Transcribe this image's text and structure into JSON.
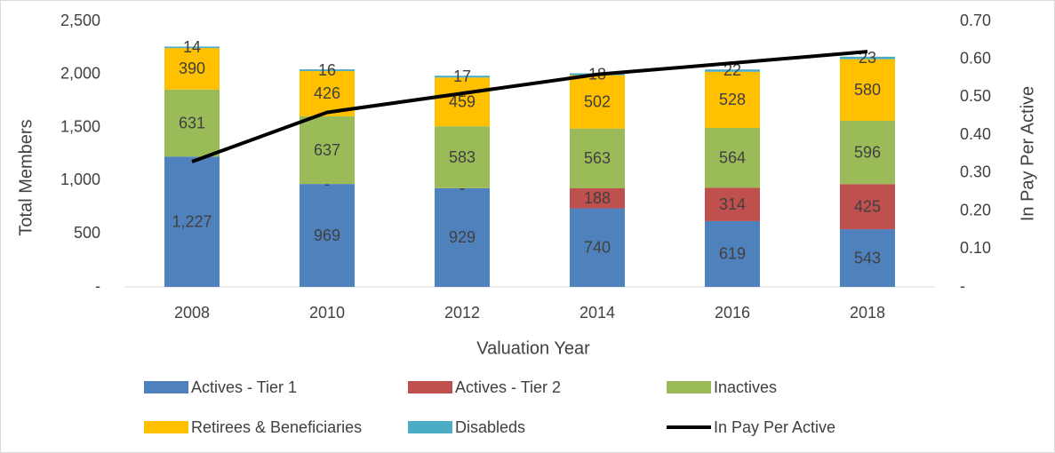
{
  "chart_data": {
    "type": "bar",
    "categories": [
      "2008",
      "2010",
      "2012",
      "2014",
      "2016",
      "2018"
    ],
    "x_label": "Valuation Year",
    "y_label": "Total Members",
    "y2_label": "In Pay Per Active",
    "stacked": true,
    "ylim": [
      0,
      2500
    ],
    "yticks": [
      {
        "value": 0,
        "label": "-"
      },
      500,
      {
        "value": 1000,
        "label": "1,000"
      },
      {
        "value": 1500,
        "label": "1,500"
      },
      {
        "value": 2000,
        "label": "2,000"
      },
      {
        "value": 2500,
        "label": "2,500"
      }
    ],
    "y2lim": [
      0,
      0.7
    ],
    "y2ticks": [
      {
        "value": 0,
        "label": "-"
      },
      {
        "value": 0.1,
        "label": "0.10"
      },
      {
        "value": 0.2,
        "label": "0.20"
      },
      {
        "value": 0.3,
        "label": "0.30"
      },
      {
        "value": 0.4,
        "label": "0.40"
      },
      {
        "value": 0.5,
        "label": "0.50"
      },
      {
        "value": 0.6,
        "label": "0.60"
      },
      {
        "value": 0.7,
        "label": "0.70"
      }
    ],
    "legend": "bottom",
    "series": [
      {
        "name": "Actives - Tier 1",
        "color": "#4f81bd",
        "values": [
          1227,
          969,
          929,
          740,
          619,
          543
        ],
        "value_labels": [
          "1,227",
          "969",
          "929",
          "740",
          "619",
          "543"
        ]
      },
      {
        "name": "Actives - Tier 2",
        "color": "#c0504d",
        "values": [
          null,
          0,
          0,
          188,
          314,
          425
        ],
        "value_labels": [
          null,
          "-",
          "-",
          "188",
          "314",
          "425"
        ]
      },
      {
        "name": "Inactives",
        "color": "#9bbb59",
        "values": [
          631,
          637,
          583,
          563,
          564,
          596
        ]
      },
      {
        "name": "Retirees & Beneficiaries",
        "color": "#ffc000",
        "values": [
          390,
          426,
          459,
          502,
          528,
          580
        ]
      },
      {
        "name": "Disableds",
        "color": "#4bacc6",
        "values": [
          14,
          16,
          17,
          18,
          22,
          23
        ]
      },
      {
        "name": "In Pay Per Active",
        "type": "line",
        "axis": "y2",
        "color": "#000000",
        "values": [
          0.33,
          0.46,
          0.51,
          0.56,
          0.59,
          0.62
        ]
      }
    ]
  }
}
